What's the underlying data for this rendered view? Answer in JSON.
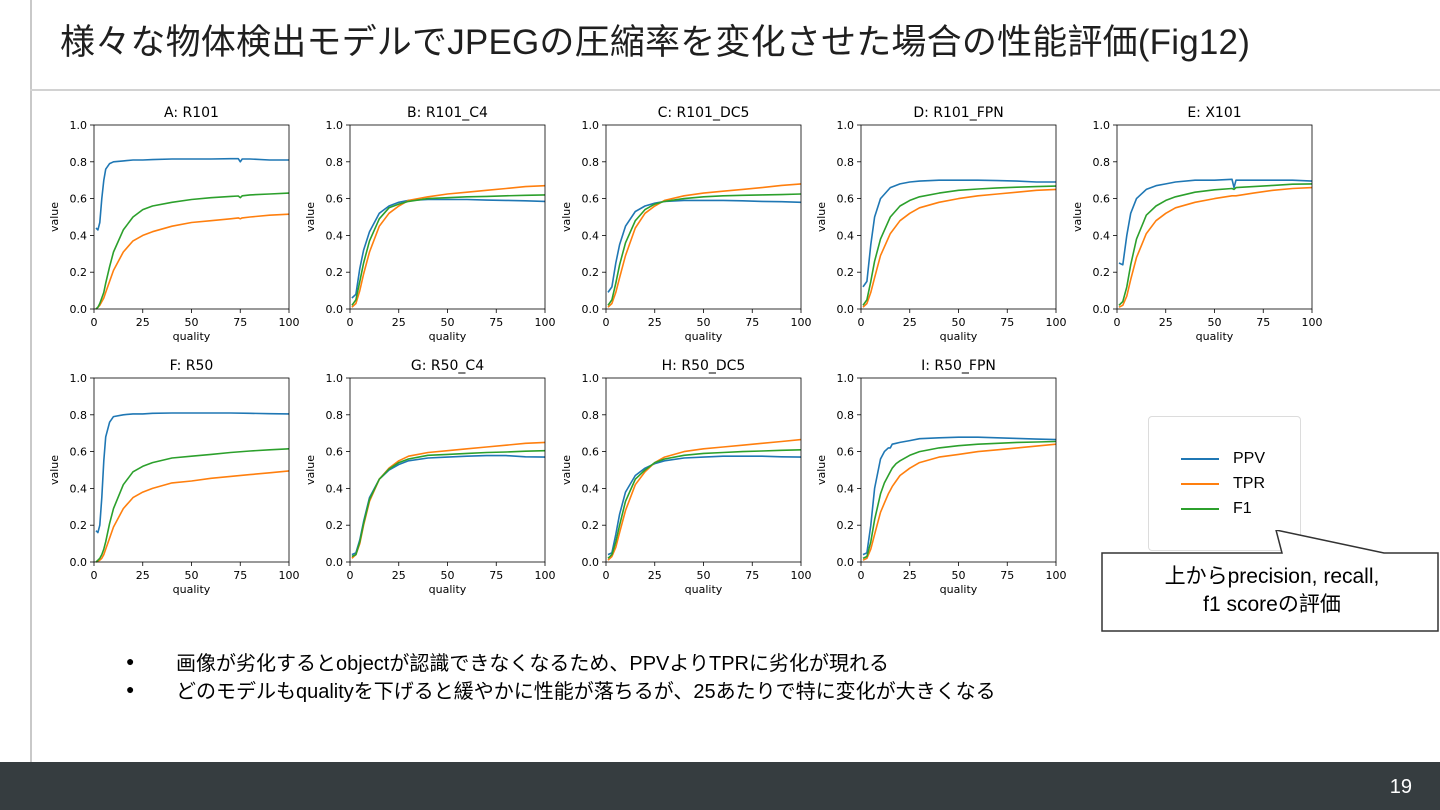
{
  "slide": {
    "title": "様々な物体検出モデルでJPEGの圧縮率を変化させた場合の性能評価(Fig12)",
    "page_number": "19",
    "bullets": [
      "画像が劣化するとobjectが認識できなくなるため、PPVよりTPRに劣化が現れる",
      "どのモデルもqualityを下げると緩やかに性能が落ちるが、25あたりで特に変化が大きくなる"
    ],
    "callout": [
      "上からprecision, recall,",
      "f1 scoreの評価"
    ],
    "colors": {
      "PPV": "#1f77b4",
      "TPR": "#ff7f0e",
      "F1": "#2ca02c"
    }
  },
  "legend": [
    "PPV",
    "TPR",
    "F1"
  ],
  "chart_data": [
    {
      "type": "line",
      "title": "A: R101",
      "xlabel": "quality",
      "ylabel": "value",
      "xlim": [
        0,
        100
      ],
      "ylim": [
        0,
        1.0
      ],
      "xticks": [
        0,
        25,
        50,
        75,
        100
      ],
      "yticks": [
        "0.0",
        "0.2",
        "0.4",
        "0.6",
        "0.8",
        "1.0"
      ],
      "x": [
        1,
        2,
        3,
        4,
        5,
        6,
        8,
        10,
        15,
        20,
        25,
        30,
        40,
        50,
        60,
        70,
        74,
        75,
        76,
        80,
        90,
        100
      ],
      "series": [
        {
          "name": "PPV",
          "values": [
            0.44,
            0.43,
            0.47,
            0.6,
            0.7,
            0.76,
            0.79,
            0.8,
            0.805,
            0.81,
            0.81,
            0.812,
            0.815,
            0.815,
            0.815,
            0.817,
            0.817,
            0.8,
            0.815,
            0.815,
            0.81,
            0.81
          ]
        },
        {
          "name": "TPR",
          "values": [
            0.0,
            0.01,
            0.02,
            0.04,
            0.06,
            0.09,
            0.15,
            0.21,
            0.31,
            0.37,
            0.4,
            0.42,
            0.45,
            0.47,
            0.48,
            0.49,
            0.495,
            0.49,
            0.495,
            0.5,
            0.51,
            0.515
          ]
        },
        {
          "name": "F1",
          "values": [
            0.0,
            0.01,
            0.03,
            0.06,
            0.09,
            0.14,
            0.23,
            0.31,
            0.43,
            0.5,
            0.54,
            0.56,
            0.58,
            0.595,
            0.605,
            0.612,
            0.614,
            0.605,
            0.615,
            0.62,
            0.625,
            0.63
          ]
        }
      ]
    },
    {
      "type": "line",
      "title": "B: R101_C4",
      "xlabel": "quality",
      "ylabel": "value",
      "xlim": [
        0,
        100
      ],
      "ylim": [
        0,
        1.0
      ],
      "xticks": [
        0,
        25,
        50,
        75,
        100
      ],
      "yticks": [
        "0.0",
        "0.2",
        "0.4",
        "0.6",
        "0.8",
        "1.0"
      ],
      "x": [
        1,
        3,
        5,
        7,
        10,
        15,
        20,
        25,
        30,
        40,
        50,
        60,
        70,
        80,
        90,
        100
      ],
      "series": [
        {
          "name": "PPV",
          "values": [
            0.06,
            0.08,
            0.22,
            0.32,
            0.42,
            0.52,
            0.56,
            0.58,
            0.59,
            0.595,
            0.595,
            0.595,
            0.592,
            0.59,
            0.588,
            0.585
          ]
        },
        {
          "name": "TPR",
          "values": [
            0.01,
            0.03,
            0.1,
            0.19,
            0.31,
            0.45,
            0.52,
            0.56,
            0.59,
            0.61,
            0.625,
            0.635,
            0.645,
            0.655,
            0.665,
            0.67
          ]
        },
        {
          "name": "F1",
          "values": [
            0.02,
            0.05,
            0.15,
            0.25,
            0.37,
            0.49,
            0.55,
            0.57,
            0.585,
            0.6,
            0.605,
            0.61,
            0.612,
            0.615,
            0.618,
            0.62
          ]
        }
      ]
    },
    {
      "type": "line",
      "title": "C: R101_DC5",
      "xlabel": "quality",
      "ylabel": "value",
      "xlim": [
        0,
        100
      ],
      "ylim": [
        0,
        1.0
      ],
      "xticks": [
        0,
        25,
        50,
        75,
        100
      ],
      "yticks": [
        "0.0",
        "0.2",
        "0.4",
        "0.6",
        "0.8",
        "1.0"
      ],
      "x": [
        1,
        3,
        5,
        7,
        10,
        15,
        20,
        25,
        30,
        40,
        50,
        60,
        70,
        80,
        90,
        100
      ],
      "series": [
        {
          "name": "PPV",
          "values": [
            0.09,
            0.12,
            0.25,
            0.35,
            0.45,
            0.53,
            0.56,
            0.575,
            0.585,
            0.59,
            0.59,
            0.59,
            0.588,
            0.585,
            0.583,
            0.58
          ]
        },
        {
          "name": "TPR",
          "values": [
            0.01,
            0.03,
            0.09,
            0.17,
            0.29,
            0.44,
            0.52,
            0.56,
            0.59,
            0.615,
            0.63,
            0.64,
            0.65,
            0.66,
            0.672,
            0.68
          ]
        },
        {
          "name": "F1",
          "values": [
            0.02,
            0.05,
            0.14,
            0.24,
            0.36,
            0.48,
            0.54,
            0.57,
            0.585,
            0.6,
            0.61,
            0.615,
            0.618,
            0.62,
            0.622,
            0.625
          ]
        }
      ]
    },
    {
      "type": "line",
      "title": "D: R101_FPN",
      "xlabel": "quality",
      "ylabel": "value",
      "xlim": [
        0,
        100
      ],
      "ylim": [
        0,
        1.0
      ],
      "xticks": [
        0,
        25,
        50,
        75,
        100
      ],
      "yticks": [
        "0.0",
        "0.2",
        "0.4",
        "0.6",
        "0.8",
        "1.0"
      ],
      "x": [
        1,
        3,
        5,
        7,
        10,
        15,
        20,
        25,
        30,
        40,
        50,
        60,
        70,
        80,
        90,
        100
      ],
      "series": [
        {
          "name": "PPV",
          "values": [
            0.12,
            0.15,
            0.35,
            0.5,
            0.6,
            0.66,
            0.68,
            0.69,
            0.695,
            0.7,
            0.7,
            0.7,
            0.698,
            0.695,
            0.69,
            0.69
          ]
        },
        {
          "name": "TPR",
          "values": [
            0.01,
            0.03,
            0.09,
            0.17,
            0.29,
            0.41,
            0.48,
            0.52,
            0.55,
            0.58,
            0.6,
            0.615,
            0.625,
            0.635,
            0.645,
            0.65
          ]
        },
        {
          "name": "F1",
          "values": [
            0.02,
            0.05,
            0.15,
            0.26,
            0.38,
            0.5,
            0.56,
            0.59,
            0.61,
            0.63,
            0.645,
            0.652,
            0.658,
            0.662,
            0.665,
            0.668
          ]
        }
      ]
    },
    {
      "type": "line",
      "title": "E: X101",
      "xlabel": "quality",
      "ylabel": "value",
      "xlim": [
        0,
        100
      ],
      "ylim": [
        0,
        1.0
      ],
      "xticks": [
        0,
        25,
        50,
        75,
        100
      ],
      "yticks": [
        "0.0",
        "0.2",
        "0.4",
        "0.6",
        "0.8",
        "1.0"
      ],
      "x": [
        1,
        3,
        5,
        7,
        10,
        15,
        20,
        25,
        30,
        40,
        50,
        59,
        60,
        61,
        70,
        80,
        90,
        100
      ],
      "series": [
        {
          "name": "PPV",
          "values": [
            0.25,
            0.24,
            0.4,
            0.52,
            0.6,
            0.65,
            0.67,
            0.68,
            0.69,
            0.7,
            0.7,
            0.705,
            0.66,
            0.7,
            0.7,
            0.7,
            0.7,
            0.695
          ]
        },
        {
          "name": "TPR",
          "values": [
            0.01,
            0.02,
            0.07,
            0.16,
            0.28,
            0.41,
            0.48,
            0.52,
            0.55,
            0.58,
            0.6,
            0.615,
            0.615,
            0.615,
            0.63,
            0.645,
            0.655,
            0.66
          ]
        },
        {
          "name": "F1",
          "values": [
            0.02,
            0.04,
            0.12,
            0.24,
            0.38,
            0.51,
            0.56,
            0.59,
            0.61,
            0.635,
            0.648,
            0.655,
            0.65,
            0.66,
            0.665,
            0.672,
            0.678,
            0.68
          ]
        }
      ]
    },
    {
      "type": "line",
      "title": "F: R50",
      "xlabel": "quality",
      "ylabel": "value",
      "xlim": [
        0,
        100
      ],
      "ylim": [
        0,
        1.0
      ],
      "xticks": [
        0,
        25,
        50,
        75,
        100
      ],
      "yticks": [
        "0.0",
        "0.2",
        "0.4",
        "0.6",
        "0.8",
        "1.0"
      ],
      "x": [
        1,
        2,
        3,
        4,
        5,
        6,
        8,
        10,
        15,
        20,
        25,
        30,
        40,
        50,
        60,
        70,
        80,
        90,
        100
      ],
      "series": [
        {
          "name": "PPV",
          "values": [
            0.17,
            0.16,
            0.2,
            0.35,
            0.55,
            0.68,
            0.76,
            0.79,
            0.8,
            0.805,
            0.805,
            0.808,
            0.81,
            0.81,
            0.81,
            0.81,
            0.808,
            0.806,
            0.805
          ]
        },
        {
          "name": "TPR",
          "values": [
            0.0,
            0.005,
            0.01,
            0.02,
            0.04,
            0.07,
            0.13,
            0.19,
            0.29,
            0.35,
            0.38,
            0.4,
            0.43,
            0.44,
            0.455,
            0.465,
            0.475,
            0.485,
            0.495
          ]
        },
        {
          "name": "F1",
          "values": [
            0.0,
            0.01,
            0.02,
            0.04,
            0.07,
            0.11,
            0.21,
            0.29,
            0.42,
            0.49,
            0.52,
            0.54,
            0.565,
            0.575,
            0.585,
            0.595,
            0.603,
            0.61,
            0.615
          ]
        }
      ]
    },
    {
      "type": "line",
      "title": "G: R50_C4",
      "xlabel": "quality",
      "ylabel": "value",
      "xlim": [
        0,
        100
      ],
      "ylim": [
        0,
        1.0
      ],
      "xticks": [
        0,
        25,
        50,
        75,
        100
      ],
      "yticks": [
        "0.0",
        "0.2",
        "0.4",
        "0.6",
        "0.8",
        "1.0"
      ],
      "x": [
        1,
        3,
        5,
        7,
        10,
        15,
        20,
        25,
        30,
        40,
        50,
        60,
        70,
        80,
        90,
        100
      ],
      "series": [
        {
          "name": "PPV",
          "values": [
            0.04,
            0.05,
            0.12,
            0.22,
            0.35,
            0.45,
            0.5,
            0.53,
            0.55,
            0.565,
            0.57,
            0.575,
            0.578,
            0.578,
            0.572,
            0.57
          ]
        },
        {
          "name": "TPR",
          "values": [
            0.02,
            0.04,
            0.1,
            0.2,
            0.33,
            0.45,
            0.51,
            0.55,
            0.575,
            0.595,
            0.605,
            0.615,
            0.625,
            0.635,
            0.645,
            0.65
          ]
        },
        {
          "name": "F1",
          "values": [
            0.03,
            0.04,
            0.11,
            0.21,
            0.34,
            0.45,
            0.505,
            0.54,
            0.56,
            0.58,
            0.585,
            0.59,
            0.595,
            0.598,
            0.602,
            0.605
          ]
        }
      ]
    },
    {
      "type": "line",
      "title": "H: R50_DC5",
      "xlabel": "quality",
      "ylabel": "value",
      "xlim": [
        0,
        100
      ],
      "ylim": [
        0,
        1.0
      ],
      "xticks": [
        0,
        25,
        50,
        75,
        100
      ],
      "yticks": [
        "0.0",
        "0.2",
        "0.4",
        "0.6",
        "0.8",
        "1.0"
      ],
      "x": [
        1,
        3,
        5,
        7,
        10,
        15,
        20,
        25,
        30,
        40,
        50,
        60,
        70,
        80,
        90,
        100
      ],
      "series": [
        {
          "name": "PPV",
          "values": [
            0.04,
            0.05,
            0.15,
            0.26,
            0.38,
            0.47,
            0.51,
            0.535,
            0.55,
            0.565,
            0.57,
            0.575,
            0.575,
            0.575,
            0.572,
            0.57
          ]
        },
        {
          "name": "TPR",
          "values": [
            0.01,
            0.03,
            0.08,
            0.16,
            0.28,
            0.42,
            0.49,
            0.54,
            0.57,
            0.6,
            0.615,
            0.625,
            0.635,
            0.645,
            0.655,
            0.665
          ]
        },
        {
          "name": "F1",
          "values": [
            0.02,
            0.04,
            0.11,
            0.2,
            0.33,
            0.45,
            0.5,
            0.54,
            0.56,
            0.58,
            0.59,
            0.595,
            0.6,
            0.603,
            0.607,
            0.61
          ]
        }
      ]
    },
    {
      "type": "line",
      "title": "I: R50_FPN",
      "xlabel": "quality",
      "ylabel": "value",
      "xlim": [
        0,
        100
      ],
      "ylim": [
        0,
        1.0
      ],
      "xticks": [
        0,
        25,
        50,
        75,
        100
      ],
      "yticks": [
        "0.0",
        "0.2",
        "0.4",
        "0.6",
        "0.8",
        "1.0"
      ],
      "x": [
        1,
        3,
        5,
        7,
        10,
        12,
        14,
        15,
        16,
        18,
        20,
        25,
        30,
        40,
        50,
        60,
        70,
        80,
        90,
        100
      ],
      "series": [
        {
          "name": "PPV",
          "values": [
            0.04,
            0.05,
            0.2,
            0.4,
            0.56,
            0.6,
            0.62,
            0.62,
            0.64,
            0.645,
            0.65,
            0.66,
            0.67,
            0.675,
            0.678,
            0.678,
            0.675,
            0.672,
            0.668,
            0.665
          ]
        },
        {
          "name": "TPR",
          "values": [
            0.01,
            0.02,
            0.07,
            0.15,
            0.27,
            0.32,
            0.37,
            0.39,
            0.41,
            0.44,
            0.47,
            0.51,
            0.54,
            0.57,
            0.585,
            0.6,
            0.61,
            0.62,
            0.63,
            0.64
          ]
        },
        {
          "name": "F1",
          "values": [
            0.02,
            0.03,
            0.11,
            0.23,
            0.37,
            0.43,
            0.47,
            0.49,
            0.51,
            0.535,
            0.55,
            0.58,
            0.6,
            0.62,
            0.632,
            0.64,
            0.645,
            0.65,
            0.652,
            0.655
          ]
        }
      ]
    }
  ]
}
